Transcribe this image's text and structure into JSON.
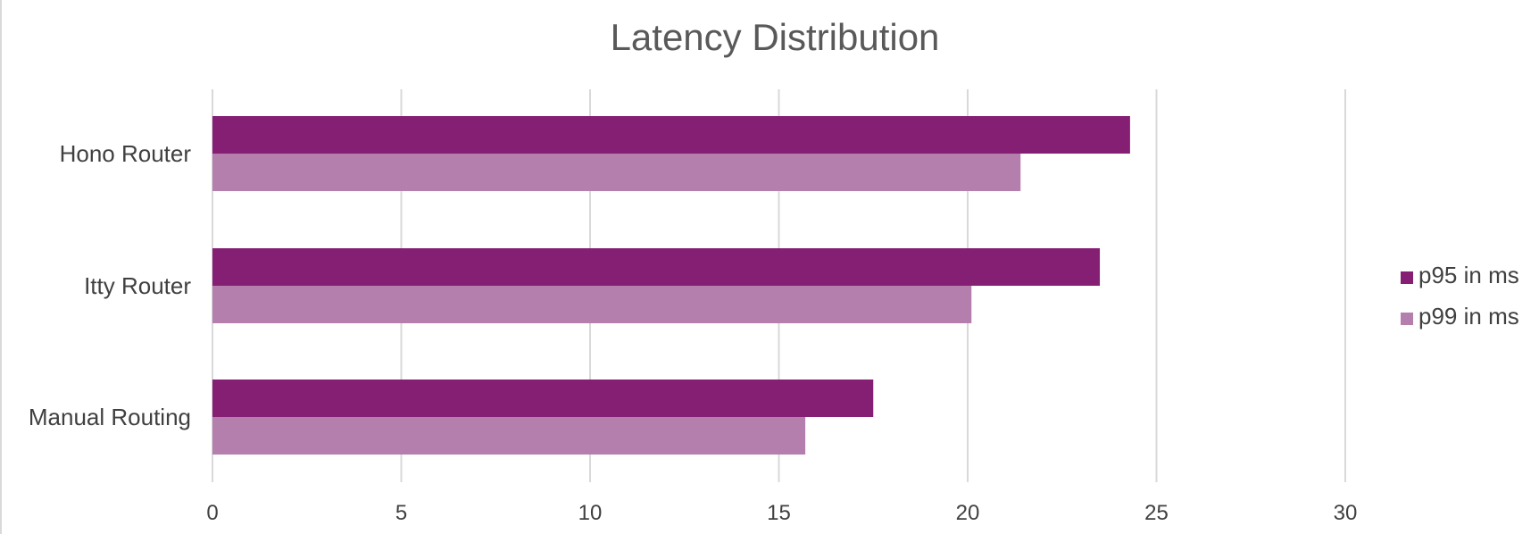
{
  "chart_data": {
    "type": "bar",
    "orientation": "horizontal",
    "title": "Latency Distribution",
    "xlabel": "",
    "ylabel": "",
    "categories": [
      "Hono Router",
      "Itty Router",
      "Manual Routing"
    ],
    "series": [
      {
        "name": "p95 in ms",
        "color": "#841f74",
        "values": [
          24.3,
          23.5,
          17.5
        ]
      },
      {
        "name": "p99 in ms",
        "color": "#b47fad",
        "values": [
          21.4,
          20.1,
          15.7
        ]
      }
    ],
    "xlim": [
      0,
      30
    ],
    "xticks": [
      0,
      5,
      10,
      15,
      20,
      25,
      30
    ],
    "grid": true,
    "legend_position": "right",
    "colors": {
      "grid": "#d9d9d9",
      "text": "#404040",
      "title": "#595959",
      "background": "#ffffff"
    }
  }
}
